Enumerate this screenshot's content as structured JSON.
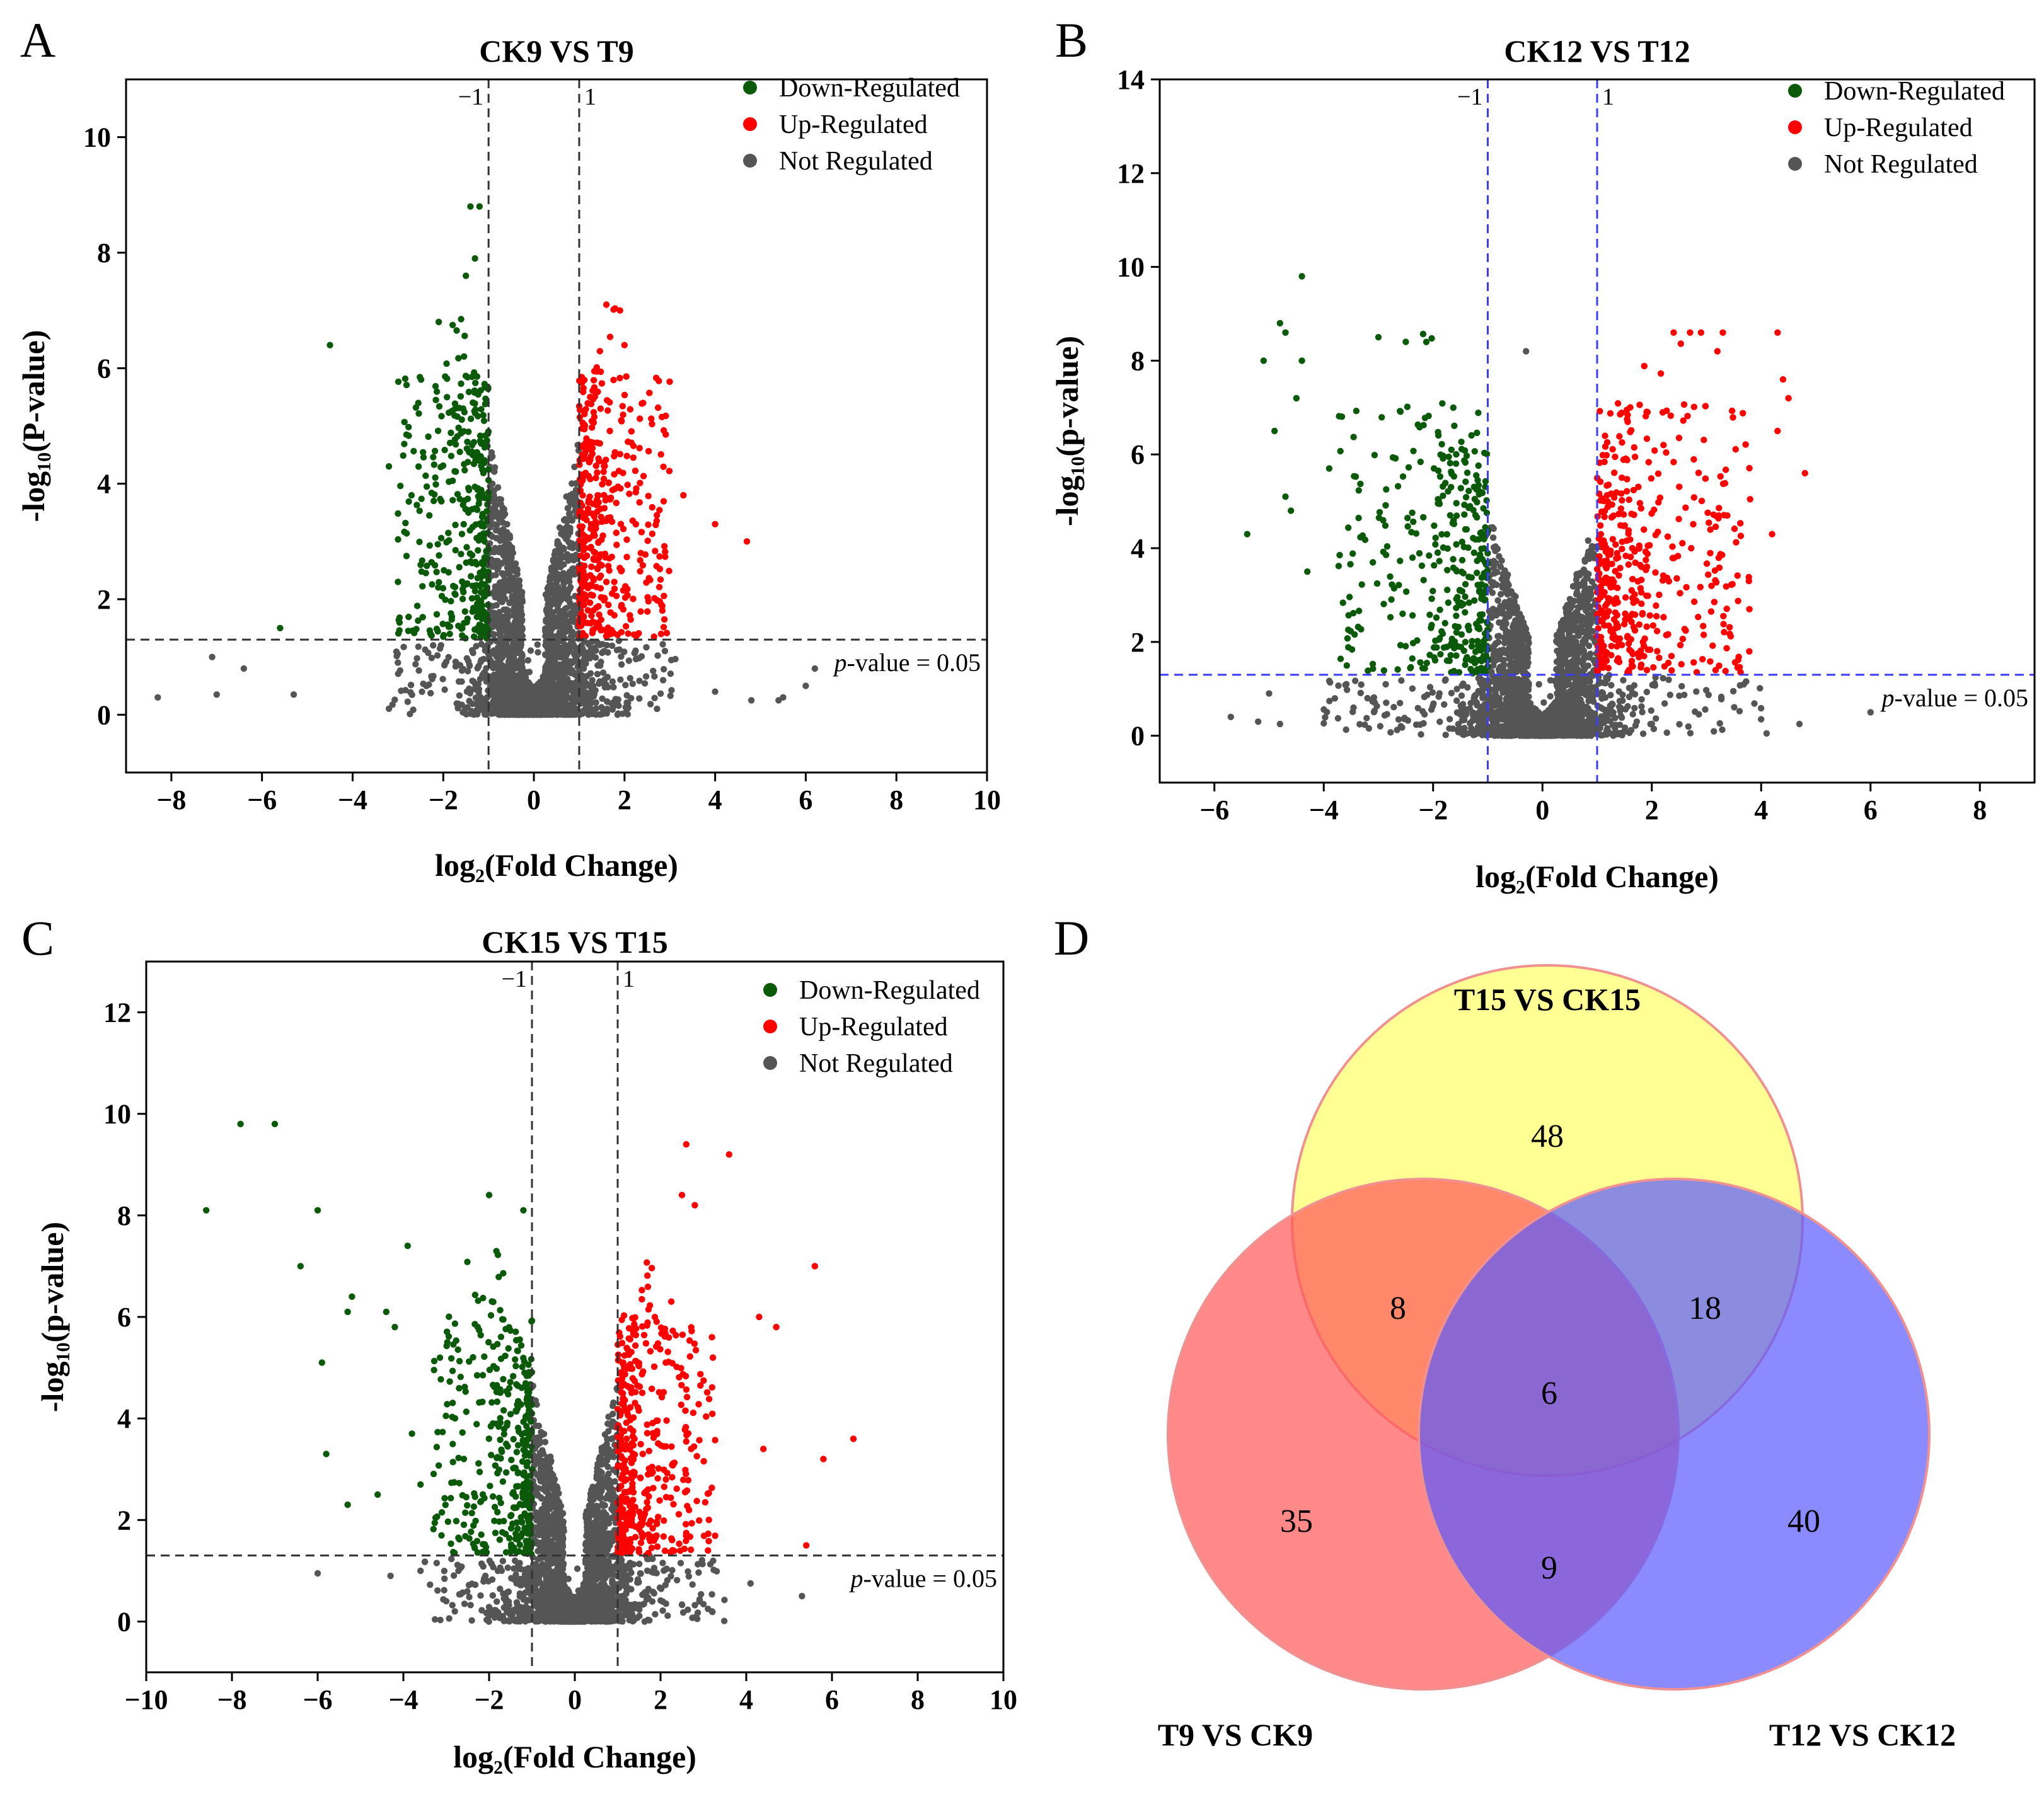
{
  "colors": {
    "down": "#0a5a0a",
    "up": "#ff0000",
    "not": "#555555",
    "venn_yellow": "#ffff80",
    "venn_red": "#ff5a5a",
    "venn_blue": "#5a5aff"
  },
  "chart_data": [
    {
      "panel_label": "A",
      "type": "scatter",
      "title": "CK9 VS T9",
      "xlabel": "log₂(Fold Change)",
      "ylabel": "-log₁₀(P-value)",
      "xlim": [
        -9,
        10
      ],
      "ylim": [
        -1,
        11
      ],
      "xticks": [
        "−8",
        "−6",
        "−4",
        "−2",
        "0",
        "2",
        "4",
        "6",
        "8",
        "10"
      ],
      "xtick_values": [
        -8,
        -6,
        -4,
        -2,
        0,
        2,
        4,
        6,
        8,
        10
      ],
      "yticks": [
        "0",
        "2",
        "4",
        "6",
        "8",
        "10"
      ],
      "ytick_values": [
        0,
        2,
        4,
        6,
        8,
        10
      ],
      "fc_threshold": 1,
      "fc_labels": [
        "−1",
        "1"
      ],
      "p_line": 1.3,
      "p_label_italic": "p",
      "p_label_rest": "-value = 0.05",
      "guide_color": "#333333",
      "legend": [
        "Down-Regulated",
        "Up-Regulated",
        "Not Regulated"
      ],
      "legend_position": "top-right",
      "spread": 2.6,
      "max_y": 7.1,
      "seed": 11,
      "outliers_down": [
        [
          -4.5,
          6.4
        ],
        [
          -1.4,
          8.8
        ],
        [
          -1.2,
          8.8
        ],
        [
          -1.3,
          7.9
        ],
        [
          -1.5,
          7.6
        ],
        [
          -2.1,
          6.8
        ],
        [
          -3.2,
          4.3
        ],
        [
          -3.0,
          2.3
        ],
        [
          -2.7,
          3.8
        ],
        [
          -5.6,
          1.5
        ]
      ],
      "outliers_up": [
        [
          4.7,
          3.0
        ],
        [
          4.0,
          3.3
        ],
        [
          3.3,
          3.8
        ],
        [
          2.0,
          6.4
        ],
        [
          1.6,
          7.1
        ],
        [
          1.9,
          7.0
        ]
      ],
      "outliers_not": [
        [
          -8.3,
          0.3
        ],
        [
          -7.0,
          0.35
        ],
        [
          -7.1,
          1.0
        ],
        [
          -5.3,
          0.35
        ],
        [
          -6.4,
          0.8
        ],
        [
          5.4,
          0.25
        ],
        [
          5.5,
          0.3
        ],
        [
          6.0,
          0.5
        ],
        [
          6.2,
          0.8
        ],
        [
          4.8,
          0.25
        ],
        [
          4.0,
          0.4
        ]
      ]
    },
    {
      "panel_label": "B",
      "type": "scatter",
      "title": "CK12 VS T12",
      "xlabel": "log₂(Fold Change)",
      "ylabel": "-log₁₀(p-value)",
      "xlim": [
        -7,
        9
      ],
      "ylim": [
        -1,
        14
      ],
      "xticks": [
        "−6",
        "−4",
        "−2",
        "0",
        "2",
        "4",
        "6",
        "8"
      ],
      "xtick_values": [
        -6,
        -4,
        -2,
        0,
        2,
        4,
        6,
        8
      ],
      "yticks": [
        "0",
        "2",
        "4",
        "6",
        "8",
        "10",
        "12",
        "14"
      ],
      "ytick_values": [
        0,
        2,
        4,
        6,
        8,
        10,
        12,
        14
      ],
      "fc_threshold": 1,
      "fc_labels": [
        "−1",
        "1"
      ],
      "p_line": 1.3,
      "p_label_italic": "p",
      "p_label_rest": "-value = 0.05",
      "guide_color": "#3b3bff",
      "legend": [
        "Down-Regulated",
        "Up-Regulated",
        "Not Regulated"
      ],
      "legend_position": "top-right",
      "spread": 3.4,
      "max_y": 8.6,
      "seed": 23,
      "outliers_down": [
        [
          -4.4,
          9.8
        ],
        [
          -4.8,
          8.8
        ],
        [
          -4.7,
          8.6
        ],
        [
          -5.1,
          8.0
        ],
        [
          -4.4,
          8.0
        ],
        [
          -4.5,
          7.2
        ],
        [
          -4.9,
          6.5
        ],
        [
          -5.4,
          4.3
        ],
        [
          -4.6,
          4.8
        ],
        [
          -4.3,
          3.5
        ],
        [
          -4.7,
          5.1
        ],
        [
          -3.9,
          5.7
        ],
        [
          -3.0,
          8.5
        ],
        [
          -2.5,
          8.4
        ]
      ],
      "outliers_up": [
        [
          4.3,
          8.6
        ],
        [
          4.4,
          7.6
        ],
        [
          4.5,
          7.2
        ],
        [
          4.8,
          5.6
        ],
        [
          4.3,
          6.5
        ],
        [
          4.2,
          4.3
        ],
        [
          3.3,
          8.6
        ],
        [
          3.2,
          8.2
        ],
        [
          2.9,
          8.6
        ],
        [
          2.4,
          8.6
        ],
        [
          2.7,
          8.6
        ]
      ],
      "outliers_not": [
        [
          -5.7,
          0.4
        ],
        [
          -5.2,
          0.3
        ],
        [
          -5.0,
          0.9
        ],
        [
          -4.8,
          0.25
        ],
        [
          -3.2,
          0.8
        ],
        [
          -0.3,
          8.2
        ],
        [
          4.1,
          0.05
        ],
        [
          4.7,
          0.25
        ],
        [
          6.0,
          0.5
        ]
      ]
    },
    {
      "panel_label": "C",
      "type": "scatter",
      "title": "CK15 VS T15",
      "xlabel": "log₂(Fold Change)",
      "ylabel": "-log₁₀(p-value)",
      "xlim": [
        -10,
        10
      ],
      "ylim": [
        -1,
        13
      ],
      "xticks": [
        "−10",
        "−8",
        "−6",
        "−4",
        "−2",
        "0",
        "2",
        "4",
        "6",
        "8",
        "10"
      ],
      "xtick_values": [
        -10,
        -8,
        -6,
        -4,
        -2,
        0,
        2,
        4,
        6,
        8,
        10
      ],
      "yticks": [
        "0",
        "2",
        "4",
        "6",
        "8",
        "10",
        "12"
      ],
      "ytick_values": [
        0,
        2,
        4,
        6,
        8,
        10,
        12
      ],
      "fc_threshold": 1,
      "fc_labels": [
        "−1",
        "1"
      ],
      "p_line": 1.3,
      "p_label_italic": "p",
      "p_label_rest": "-value = 0.05",
      "guide_color": "#333333",
      "legend": [
        "Down-Regulated",
        "Up-Regulated",
        "Not Regulated"
      ],
      "legend_position": "top-right",
      "spread": 2.9,
      "max_y": 7.3,
      "seed": 37,
      "outliers_down": [
        [
          -7.8,
          9.8
        ],
        [
          -7.0,
          9.8
        ],
        [
          -8.6,
          8.1
        ],
        [
          -6.0,
          8.1
        ],
        [
          -6.4,
          7.0
        ],
        [
          -3.9,
          7.4
        ],
        [
          -5.2,
          6.4
        ],
        [
          -5.3,
          6.1
        ],
        [
          -4.4,
          6.1
        ],
        [
          -4.2,
          5.8
        ],
        [
          -5.9,
          5.1
        ],
        [
          -5.8,
          3.3
        ],
        [
          -5.3,
          2.3
        ],
        [
          -4.6,
          2.5
        ],
        [
          -3.8,
          3.7
        ],
        [
          -2.0,
          8.4
        ],
        [
          -1.2,
          8.1
        ],
        [
          -3.6,
          2.7
        ]
      ],
      "outliers_up": [
        [
          2.6,
          9.4
        ],
        [
          3.6,
          9.2
        ],
        [
          2.5,
          8.4
        ],
        [
          2.8,
          8.2
        ],
        [
          5.6,
          7.0
        ],
        [
          4.3,
          6.0
        ],
        [
          4.7,
          5.8
        ],
        [
          3.2,
          5.6
        ],
        [
          6.5,
          3.6
        ],
        [
          5.8,
          3.2
        ],
        [
          4.4,
          3.4
        ],
        [
          5.4,
          1.5
        ]
      ],
      "outliers_not": [
        [
          -6.0,
          0.95
        ],
        [
          -4.3,
          0.9
        ],
        [
          -3.6,
          1.0
        ],
        [
          -3.0,
          0.4
        ],
        [
          -2.8,
          0.2
        ],
        [
          4.1,
          0.75
        ],
        [
          5.3,
          0.5
        ],
        [
          3.2,
          0.2
        ]
      ]
    }
  ],
  "venn": {
    "panel_label": "D",
    "sets": [
      "T15 VS CK15",
      "T9 VS CK9",
      "T12 VS CK12"
    ],
    "regions": {
      "only_t15": "48",
      "only_t9": "35",
      "only_t12": "40",
      "t15_t9": "8",
      "t15_t12": "18",
      "t9_t12": "9",
      "all": "6"
    }
  }
}
